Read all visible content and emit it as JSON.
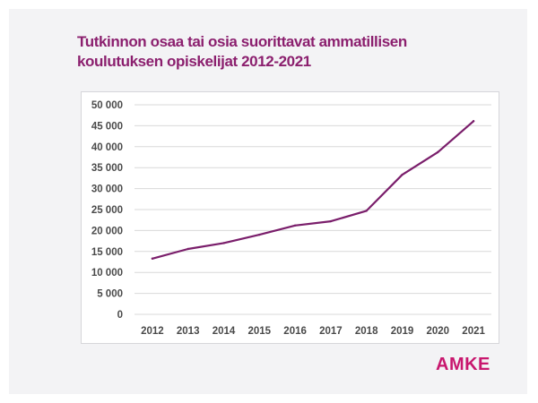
{
  "title_lines": [
    "Tutkinnon osaa tai osia suorittavat ammatillisen",
    "koulutuksen opiskelijat 2012-2021"
  ],
  "brand": "AMKE",
  "colors": {
    "title": "#8b1f6e",
    "line": "#7a1e6b",
    "brand": "#c8176e",
    "grid": "#d9d9d9"
  },
  "chart_data": {
    "type": "line",
    "x": [
      "2012",
      "2013",
      "2014",
      "2015",
      "2016",
      "2017",
      "2018",
      "2019",
      "2020",
      "2021"
    ],
    "series": [
      {
        "values": [
          13300,
          15600,
          17000,
          19000,
          21200,
          22200,
          24700,
          33300,
          38700,
          46100
        ]
      }
    ],
    "ylim": [
      0,
      50000
    ],
    "yticks": [
      0,
      5000,
      10000,
      15000,
      20000,
      25000,
      30000,
      35000,
      40000,
      45000,
      50000
    ],
    "ytick_labels": [
      "0",
      "5 000",
      "10 000",
      "15 000",
      "20 000",
      "25 000",
      "30 000",
      "35 000",
      "40 000",
      "45 000",
      "50 000"
    ],
    "grid": true,
    "title": "",
    "xlabel": "",
    "ylabel": ""
  }
}
